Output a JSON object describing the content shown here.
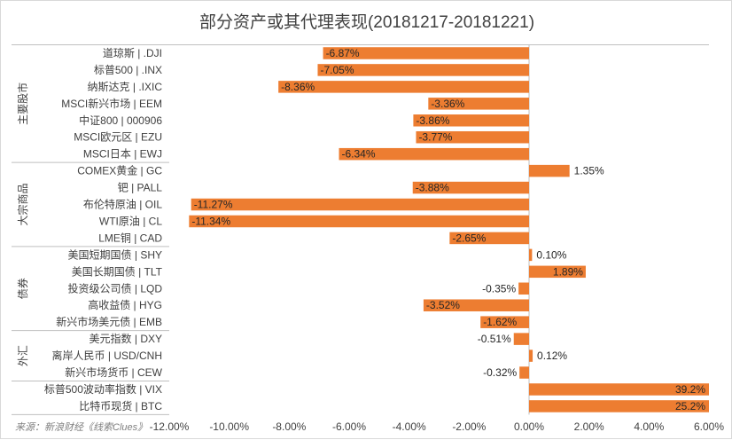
{
  "title": "部分资产或其代理表现(20181217-20181221)",
  "source": "来源：新浪财经《线索Clues》",
  "colors": {
    "bar": "#ED7D31",
    "axis": "#bfbfbf",
    "text": "#404040"
  },
  "chart_data": {
    "type": "bar",
    "orientation": "horizontal",
    "xlim": [
      -12,
      6
    ],
    "xticks": [
      -12,
      -10,
      -8,
      -6,
      -4,
      -2,
      0,
      2,
      4,
      6
    ],
    "tick_labels": [
      "-12.00%",
      "-10.00%",
      "-8.00%",
      "-6.00%",
      "-4.00%",
      "-2.00%",
      "0.00%",
      "2.00%",
      "4.00%",
      "6.00%"
    ],
    "groups": [
      {
        "name": "主要股市",
        "count": 7
      },
      {
        "name": "大宗商品",
        "count": 5
      },
      {
        "name": "债券",
        "count": 5
      },
      {
        "name": "外汇",
        "count": 3
      },
      {
        "name": "",
        "count": 2
      }
    ],
    "categories": [
      "道琼斯 | .DJI",
      "标普500 | .INX",
      "纳斯达克 | .IXIC",
      "MSCI新兴市场 | EEM",
      "中证800 | 000906",
      "MSCI欧元区 | EZU",
      "MSCI日本 | EWJ",
      "COMEX黄金 | GC",
      "钯 | PALL",
      "布伦特原油 | OIL",
      "WTI原油 | CL",
      "LME铜 | CAD",
      "美国短期国债 | SHY",
      "美国长期国债 | TLT",
      "投资级公司债 | LQD",
      "高收益债 | HYG",
      "新兴市场美元债 | EMB",
      "美元指数 | DXY",
      "离岸人民币 | USD/CNH",
      "新兴市场货币 | CEW",
      "标普500波动率指数 | VIX",
      "比特币现货 | BTC"
    ],
    "values": [
      -6.87,
      -7.05,
      -8.36,
      -3.36,
      -3.86,
      -3.77,
      -6.34,
      1.35,
      -3.88,
      -11.27,
      -11.34,
      -2.65,
      0.1,
      1.89,
      -0.35,
      -3.52,
      -1.62,
      -0.51,
      0.12,
      -0.32,
      39.2,
      25.2
    ],
    "data_labels": [
      "-6.87%",
      "-7.05%",
      "-8.36%",
      "-3.36%",
      "-3.86%",
      "-3.77%",
      "-6.34%",
      "1.35%",
      "-3.88%",
      "-11.27%",
      "-11.34%",
      "-2.65%",
      "0.10%",
      "1.89%",
      "-0.35%",
      "-3.52%",
      "-1.62%",
      "-0.51%",
      "0.12%",
      "-0.32%",
      "39.2%",
      "25.2%"
    ]
  }
}
